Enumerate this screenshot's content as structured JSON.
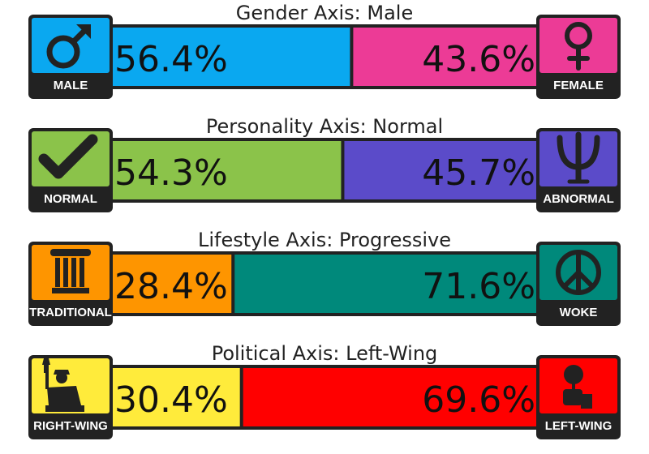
{
  "axes": [
    {
      "title": "Gender Axis: Male",
      "left": {
        "label": "MALE",
        "value": 56.4,
        "value_label": "56.4%",
        "color": "#0aa8f0"
      },
      "right": {
        "label": "FEMALE",
        "value": 43.6,
        "value_label": "43.6%",
        "color": "#ec3b96"
      }
    },
    {
      "title": "Personality Axis: Normal",
      "left": {
        "label": "NORMAL",
        "value": 54.3,
        "value_label": "54.3%",
        "color": "#8bc34a"
      },
      "right": {
        "label": "ABNORMAL",
        "value": 45.7,
        "value_label": "45.7%",
        "color": "#5b4bc9"
      }
    },
    {
      "title": "Lifestyle Axis: Progressive",
      "left": {
        "label": "TRADITIONAL",
        "value": 28.4,
        "value_label": "28.4%",
        "color": "#fe9500"
      },
      "right": {
        "label": "WOKE",
        "value": 71.6,
        "value_label": "71.6%",
        "color": "#00897b"
      }
    },
    {
      "title": "Political Axis: Left-Wing",
      "left": {
        "label": "RIGHT-WING",
        "value": 30.4,
        "value_label": "30.4%",
        "color": "#ffeb3b"
      },
      "right": {
        "label": "LEFT-WING",
        "value": 69.6,
        "value_label": "69.6%",
        "color": "#ff0000"
      }
    }
  ]
}
